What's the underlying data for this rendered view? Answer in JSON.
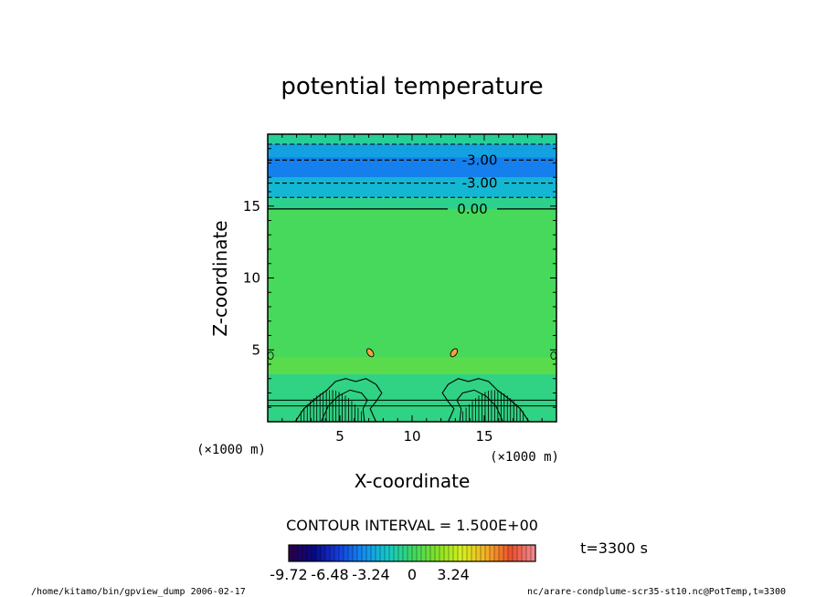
{
  "chart_data": {
    "type": "heatmap",
    "title": "potential temperature",
    "xlabel": "X-coordinate",
    "ylabel": "Z-coordinate",
    "x_unit": "(×1000 m)",
    "z_unit": "(×1000 m)",
    "xlim": [
      0,
      20
    ],
    "ylim": [
      0,
      20
    ],
    "x_ticks": [
      5,
      10,
      15
    ],
    "y_ticks": [
      5,
      10,
      15
    ],
    "contour_interval_text": "CONTOUR INTERVAL = 1.500E+00",
    "time_text": "t=3300 s",
    "contour_labels": [
      {
        "label": "-3.00",
        "z": 18.2
      },
      {
        "label": "-3.00",
        "z": 16.6
      },
      {
        "label": "0.00",
        "z": 14.8
      }
    ],
    "background_value": 0,
    "bands": [
      {
        "z_from": 19.3,
        "z_to": 20.0,
        "value": -1.0
      },
      {
        "z_from": 18.4,
        "z_to": 19.3,
        "value": -3.2
      },
      {
        "z_from": 17.0,
        "z_to": 18.4,
        "value": -4.2
      },
      {
        "z_from": 15.6,
        "z_to": 17.0,
        "value": -2.5
      },
      {
        "z_from": 14.8,
        "z_to": 15.6,
        "value": -0.8
      },
      {
        "z_from": 4.5,
        "z_to": 14.8,
        "value": 0.3
      },
      {
        "z_from": 3.3,
        "z_to": 4.5,
        "value": 0.8
      },
      {
        "z_from": 0.0,
        "z_to": 3.3,
        "value": -0.6
      }
    ],
    "colorbar": {
      "min": -9.72,
      "max": 9.72,
      "tick_values": [
        -9.72,
        -6.48,
        -3.24,
        0,
        3.24
      ],
      "tick_labels": [
        "-9.72",
        "-6.48",
        "-3.24",
        "0",
        "3.24"
      ]
    }
  },
  "footer": {
    "left": "/home/kitamo/bin/gpview_dump  2006-02-17",
    "right": "nc/arare-condplume-scr35-st10.nc@PotTemp,t=3300"
  }
}
